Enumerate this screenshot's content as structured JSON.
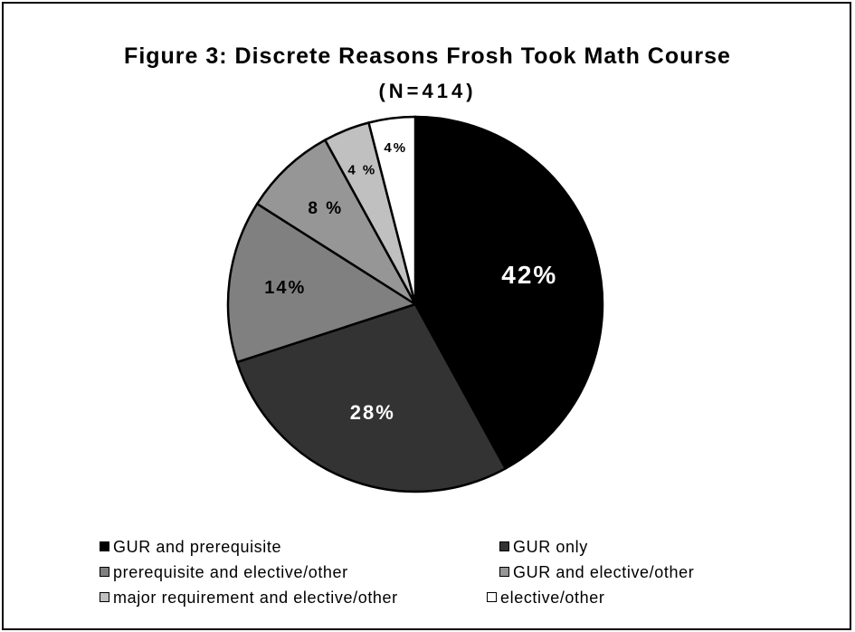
{
  "chart_data": {
    "type": "pie",
    "title": "Figure 3: Discrete Reasons Frosh Took Math Course",
    "subtitle": "(N=414)",
    "slices": [
      {
        "label": "GUR and prerequisite",
        "value": 42,
        "display": "42%",
        "color": "#000000",
        "text_color": "#ffffff"
      },
      {
        "label": "GUR only",
        "value": 28,
        "display": "28%",
        "color": "#333333",
        "text_color": "#ffffff"
      },
      {
        "label": "prerequisite and elective/other",
        "value": 14,
        "display": "14%",
        "color": "#808080",
        "text_color": "#000000"
      },
      {
        "label": "GUR and elective/other",
        "value": 8,
        "display": "8 %",
        "color": "#969696",
        "text_color": "#000000"
      },
      {
        "label": "major requirement and elective/other",
        "value": 4,
        "display": "4 %",
        "color": "#c0c0c0",
        "text_color": "#000000"
      },
      {
        "label": "elective/other",
        "value": 4,
        "display": "4%",
        "color": "#ffffff",
        "text_color": "#000000"
      }
    ],
    "legend_placement": "bottom"
  }
}
